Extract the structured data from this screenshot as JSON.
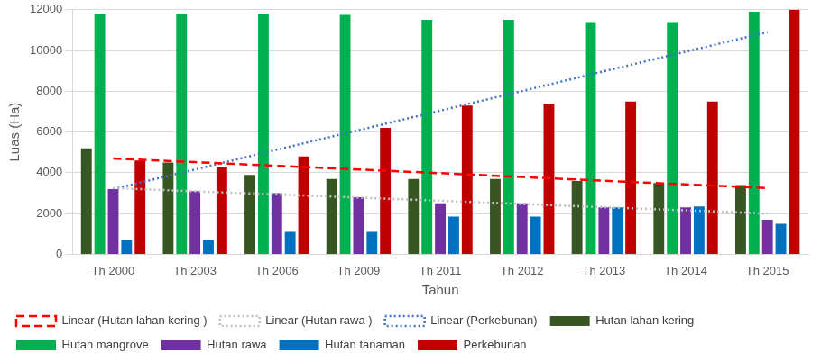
{
  "chart_data": {
    "type": "bar",
    "x_label": "Tahun",
    "y_label": "Luas (Ha)",
    "categories": [
      "Th 2000",
      "Th 2003",
      "Th 2006",
      "Th 2009",
      "Th 2011",
      "Th 2012",
      "Th 2013",
      "Th 2014",
      "Th 2015"
    ],
    "ylim": [
      0,
      12000
    ],
    "yticks": [
      0,
      2000,
      4000,
      6000,
      8000,
      10000,
      12000
    ],
    "grid": true,
    "legend": "bottom",
    "series": [
      {
        "name": "Hutan lahan kering",
        "type": "bar",
        "color": "#375623",
        "values": [
          5200,
          4500,
          3900,
          3700,
          3700,
          3700,
          3600,
          3500,
          3400
        ]
      },
      {
        "name": "Hutan mangrove",
        "type": "bar",
        "color": "#00b050",
        "values": [
          11800,
          11800,
          11800,
          11750,
          11500,
          11500,
          11400,
          11400,
          11900
        ]
      },
      {
        "name": "Hutan rawa",
        "type": "bar",
        "color": "#7030a0",
        "values": [
          3200,
          3100,
          3000,
          2800,
          2500,
          2500,
          2300,
          2300,
          1700
        ]
      },
      {
        "name": "Hutan tanaman",
        "type": "bar",
        "color": "#0070c0",
        "values": [
          700,
          700,
          1100,
          1100,
          1850,
          1850,
          2300,
          2350,
          1500
        ]
      },
      {
        "name": "Perkebunan",
        "type": "bar",
        "color": "#c00000",
        "values": [
          4600,
          4300,
          4800,
          6200,
          7300,
          7400,
          7500,
          7500,
          12000
        ]
      },
      {
        "name": "Linear (Hutan lahan kering )",
        "type": "line",
        "line_style": "dashed",
        "color": "#ff0000",
        "values": [
          4700,
          4520,
          4340,
          4160,
          3980,
          3790,
          3610,
          3430,
          3250
        ]
      },
      {
        "name": "Linear (Hutan rawa )",
        "type": "line",
        "line_style": "dotted",
        "color": "#bfbfbf",
        "values": [
          3250,
          3090,
          2940,
          2780,
          2630,
          2470,
          2310,
          2160,
          2000
        ]
      },
      {
        "name": "Linear (Perkebunan)",
        "type": "line",
        "line_style": "dotted",
        "color": "#4472c4",
        "values": [
          3200,
          4160,
          5130,
          6090,
          7050,
          8010,
          8980,
          9940,
          10900
        ]
      }
    ]
  }
}
